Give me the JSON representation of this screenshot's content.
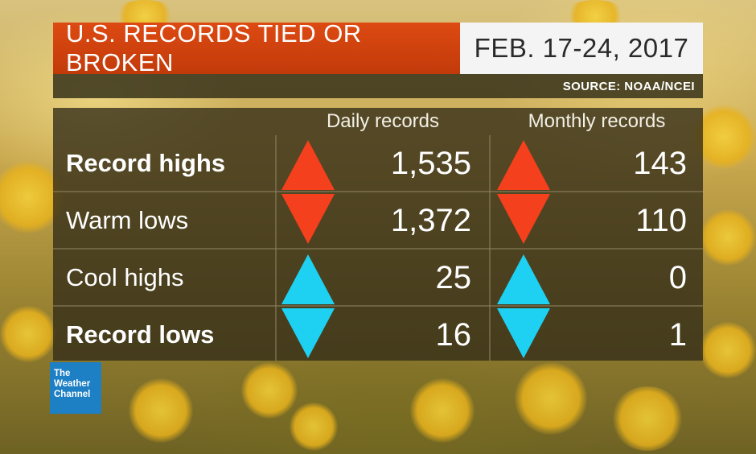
{
  "header": {
    "title": "U.S. RECORDS TIED OR BROKEN",
    "date_range": "FEB. 17-24, 2017",
    "source": "SOURCE: NOAA/NCEI"
  },
  "table": {
    "columns": [
      "Daily records",
      "Monthly records"
    ],
    "rows": [
      {
        "label": "Record highs",
        "daily": "1,535",
        "monthly": "143",
        "arrow": "up",
        "color": "#f4401c",
        "bold": true
      },
      {
        "label": "Warm lows",
        "daily": "1,372",
        "monthly": "110",
        "arrow": "down",
        "color": "#f4401c",
        "bold": false
      },
      {
        "label": "Cool highs",
        "daily": "25",
        "monthly": "0",
        "arrow": "up",
        "color": "#1ed1f2",
        "bold": false
      },
      {
        "label": "Record lows",
        "daily": "16",
        "monthly": "1",
        "arrow": "down",
        "color": "#1ed1f2",
        "bold": true
      }
    ]
  },
  "logo": {
    "line1": "The",
    "line2": "Weather",
    "line3": "Channel",
    "color": "#1d7fc4"
  },
  "colors": {
    "title_bar": "#dd4a12",
    "warm": "#f4401c",
    "cool": "#1ed1f2"
  }
}
